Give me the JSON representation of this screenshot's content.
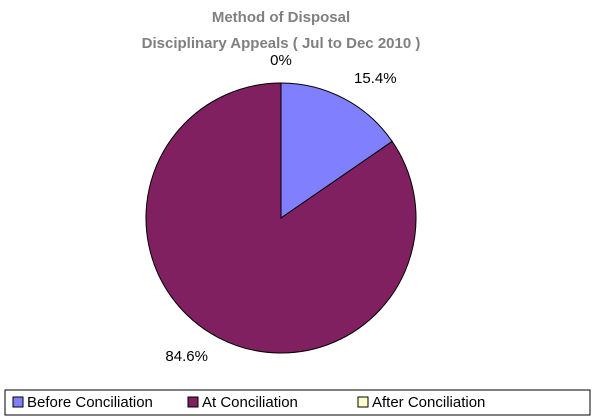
{
  "chart_data": {
    "type": "pie",
    "title": "Method of Disposal",
    "subtitle": "Disciplinary Appeals ( Jul to Dec 2010 )",
    "categories": [
      "Before Conciliation",
      "At Conciliation",
      "After Conciliation"
    ],
    "values": [
      15.4,
      84.6,
      0
    ],
    "value_labels": [
      "15.4%",
      "84.6%",
      "0%"
    ],
    "colors": [
      "#8080ff",
      "#802060",
      "#ffffcc"
    ],
    "legend": "bottom"
  }
}
